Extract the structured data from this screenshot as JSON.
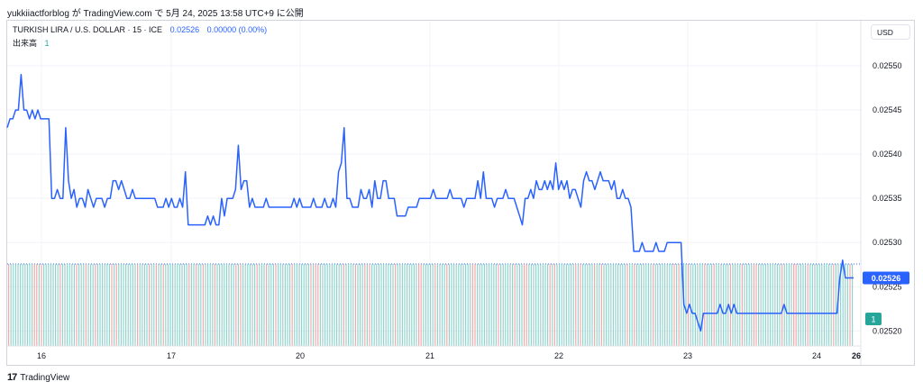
{
  "header": {
    "text": "yukkiiactforblog が TradingView.com で 5月 24, 2025 13:58 UTC+9 に公開"
  },
  "legend": {
    "symbol": "TURKISH LIRA / U.S. DOLLAR · 15 · ICE",
    "last": "0.02526",
    "change": "0.00000 (0.00%)",
    "volume_label": "出来高",
    "volume_value": "1"
  },
  "currency_button": "USD",
  "footer": {
    "brand": "TradingView",
    "logo": "17"
  },
  "colors": {
    "line": "#2962ff",
    "vol_up": "#80cbc4",
    "vol_down": "#ef9a9a",
    "price_label_bg": "#2962ff",
    "vol_label_bg": "#26a69a",
    "grid": "#f0f3fa"
  },
  "chart_data": {
    "type": "line",
    "title": "TURKISH LIRA / U.S. DOLLAR · 15 · ICE",
    "xlabel": "",
    "ylabel": "",
    "x_ticks": [
      "16",
      "17",
      "20",
      "21",
      "22",
      "23",
      "24",
      "26"
    ],
    "y_ticks": [
      "0.02520",
      "0.02525",
      "0.02530",
      "0.02535",
      "0.02540",
      "0.02545",
      "0.02550"
    ],
    "ylim": [
      0.025183,
      0.025551
    ],
    "last_price_label": "0.02526",
    "volume_label": "1",
    "grid": true,
    "series": [
      {
        "values": [
          0.02543,
          0.02544,
          0.02544,
          0.02545,
          0.02545,
          0.02549,
          0.02545,
          0.02545,
          0.02544,
          0.02545,
          0.02544,
          0.02545,
          0.02544,
          0.02544,
          0.02544,
          0.02544,
          0.02535,
          0.02535,
          0.02536,
          0.02535,
          0.02535,
          0.02543,
          0.02537,
          0.02535,
          0.02536,
          0.02534,
          0.02535,
          0.02535,
          0.02534,
          0.02536,
          0.02535,
          0.02534,
          0.02535,
          0.02535,
          0.02535,
          0.02534,
          0.02535,
          0.02535,
          0.02537,
          0.02537,
          0.02536,
          0.02537,
          0.02536,
          0.02535,
          0.02535,
          0.02536,
          0.02535,
          0.02535,
          0.02535,
          0.02535,
          0.02535,
          0.02535,
          0.02535,
          0.02535,
          0.02534,
          0.02534,
          0.02534,
          0.02535,
          0.02534,
          0.02535,
          0.02534,
          0.02534,
          0.02535,
          0.02534,
          0.02538,
          0.02532,
          0.02532,
          0.02532,
          0.02532,
          0.02532,
          0.02532,
          0.02532,
          0.02533,
          0.02532,
          0.02533,
          0.02532,
          0.02532,
          0.02535,
          0.02533,
          0.02535,
          0.02535,
          0.02535,
          0.02536,
          0.02541,
          0.02536,
          0.02537,
          0.02537,
          0.02534,
          0.02535,
          0.02534,
          0.02534,
          0.02534,
          0.02534,
          0.02535,
          0.02534,
          0.02534,
          0.02534,
          0.02534,
          0.02534,
          0.02534,
          0.02534,
          0.02534,
          0.02534,
          0.02535,
          0.02534,
          0.02535,
          0.02534,
          0.02534,
          0.02534,
          0.02534,
          0.02535,
          0.02534,
          0.02534,
          0.02534,
          0.02535,
          0.02534,
          0.02534,
          0.02535,
          0.02534,
          0.02538,
          0.02539,
          0.02543,
          0.02535,
          0.02535,
          0.02534,
          0.02534,
          0.02534,
          0.02536,
          0.02535,
          0.02535,
          0.02536,
          0.02534,
          0.02537,
          0.02535,
          0.02535,
          0.02537,
          0.02537,
          0.02535,
          0.02535,
          0.02535,
          0.02533,
          0.02533,
          0.02533,
          0.02533,
          0.02534,
          0.02534,
          0.02534,
          0.02534,
          0.02535,
          0.02535,
          0.02535,
          0.02535,
          0.02535,
          0.02536,
          0.02535,
          0.02535,
          0.02535,
          0.02535,
          0.02535,
          0.02536,
          0.02535,
          0.02535,
          0.02535,
          0.02535,
          0.02534,
          0.02535,
          0.02535,
          0.02535,
          0.02535,
          0.02537,
          0.02535,
          0.02538,
          0.02535,
          0.02535,
          0.02535,
          0.02534,
          0.02535,
          0.02535,
          0.02535,
          0.02536,
          0.02535,
          0.02535,
          0.02535,
          0.02534,
          0.02533,
          0.02532,
          0.02535,
          0.02535,
          0.02536,
          0.02535,
          0.02537,
          0.02536,
          0.02536,
          0.02537,
          0.02536,
          0.02537,
          0.02536,
          0.02539,
          0.02536,
          0.02537,
          0.02536,
          0.02537,
          0.02535,
          0.02536,
          0.02536,
          0.02535,
          0.02534,
          0.02537,
          0.02538,
          0.02537,
          0.02537,
          0.02536,
          0.02537,
          0.02538,
          0.02537,
          0.02537,
          0.02537,
          0.02536,
          0.02537,
          0.02535,
          0.02535,
          0.02536,
          0.02535,
          0.02535,
          0.02534,
          0.02529,
          0.02529,
          0.02529,
          0.0253,
          0.02529,
          0.02529,
          0.02529,
          0.02529,
          0.0253,
          0.02529,
          0.02529,
          0.02529,
          0.0253,
          0.0253,
          0.0253,
          0.0253,
          0.0253,
          0.0253,
          0.02523,
          0.02522,
          0.02523,
          0.02522,
          0.02522,
          0.02521,
          0.0252,
          0.02522,
          0.02522,
          0.02522,
          0.02522,
          0.02522,
          0.02522,
          0.02523,
          0.02522,
          0.02522,
          0.02523,
          0.02522,
          0.02523,
          0.02522,
          0.02522,
          0.02522,
          0.02522,
          0.02522,
          0.02522,
          0.02522,
          0.02522,
          0.02522,
          0.02522,
          0.02522,
          0.02522,
          0.02522,
          0.02522,
          0.02522,
          0.02522,
          0.02522,
          0.02523,
          0.02522,
          0.02522,
          0.02522,
          0.02522,
          0.02522,
          0.02522,
          0.02522,
          0.02522,
          0.02522,
          0.02522,
          0.02522,
          0.02522,
          0.02522,
          0.02522,
          0.02522,
          0.02522,
          0.02522,
          0.02522,
          0.02522,
          0.02526,
          0.02528,
          0.02526,
          0.02526
        ]
      }
    ]
  }
}
